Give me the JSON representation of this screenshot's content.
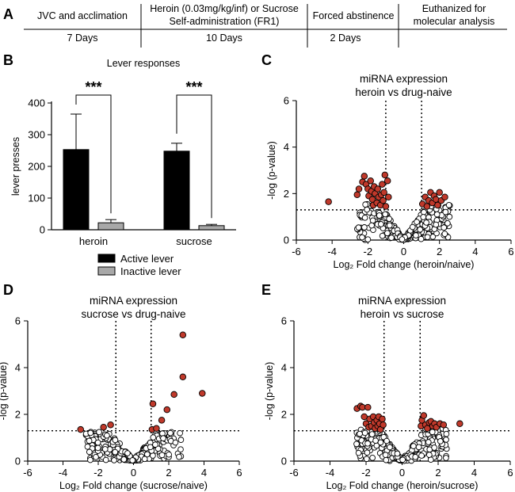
{
  "panel_a": {
    "letter": "A",
    "stages": [
      {
        "top": [
          "JVC and acclimation"
        ],
        "bottom": "7 Days"
      },
      {
        "top": [
          "Heroin (0.03mg/kg/inf) or Sucrose",
          "Self-administration (FR1)"
        ],
        "bottom": "10 Days"
      },
      {
        "top": [
          "Forced abstinence"
        ],
        "bottom": "2 Days"
      },
      {
        "top": [
          "Euthanized for",
          "molecular analysis"
        ],
        "bottom": ""
      }
    ]
  },
  "chart_data": [
    {
      "panel": "B",
      "type": "bar",
      "title": "Lever responses",
      "ylabel": "lever presses",
      "ylim": [
        0,
        400
      ],
      "yticks": [
        0,
        100,
        200,
        300,
        400
      ],
      "categories": [
        "heroin",
        "sucrose"
      ],
      "series": [
        {
          "name": "Active lever",
          "color": "#000000",
          "values": [
            253,
            248
          ],
          "error": [
            112,
            25
          ]
        },
        {
          "name": "Inactive lever",
          "color": "#a8a8a8",
          "values": [
            22,
            13
          ],
          "error": [
            10,
            4
          ]
        }
      ],
      "significance": [
        "***",
        "***"
      ],
      "legend": "bottom"
    },
    {
      "panel": "C",
      "type": "scatter",
      "title": "miRNA expression\nheroin vs drug-naive",
      "xlabel": "Log₂ Fold change (heroin/naive)",
      "ylabel": "-log (p-value)",
      "xlim": [
        -6,
        6
      ],
      "ylim": [
        0,
        6
      ],
      "xticks": [
        -6,
        -4,
        -2,
        0,
        2,
        4,
        6
      ],
      "yticks": [
        0,
        2,
        4,
        6
      ],
      "thresholds": {
        "fold_change": [
          -1,
          1
        ],
        "neg_log_p": 1.3
      },
      "significant_color": "#c0392b",
      "significant_points": [
        [
          -4.2,
          1.65
        ],
        [
          -2.6,
          1.95
        ],
        [
          -2.5,
          2.2
        ],
        [
          -2.3,
          2.5
        ],
        [
          -2.2,
          2.75
        ],
        [
          -2.1,
          2.4
        ],
        [
          -2.0,
          2.2
        ],
        [
          -1.95,
          1.9
        ],
        [
          -1.85,
          2.55
        ],
        [
          -1.8,
          2.1
        ],
        [
          -1.75,
          1.75
        ],
        [
          -1.7,
          1.5
        ],
        [
          -1.65,
          2.3
        ],
        [
          -1.6,
          2.0
        ],
        [
          -1.5,
          1.6
        ],
        [
          -1.45,
          2.2
        ],
        [
          -1.4,
          1.85
        ],
        [
          -1.3,
          1.5
        ],
        [
          -1.25,
          1.95
        ],
        [
          -1.2,
          2.4
        ],
        [
          -1.15,
          1.7
        ],
        [
          -1.1,
          2.05
        ],
        [
          -1.05,
          2.8
        ],
        [
          -1.0,
          1.45
        ],
        [
          -0.9,
          2.55
        ],
        [
          -0.85,
          1.85
        ],
        [
          1.05,
          1.55
        ],
        [
          1.2,
          1.85
        ],
        [
          1.3,
          1.45
        ],
        [
          1.4,
          1.7
        ],
        [
          1.5,
          2.05
        ],
        [
          1.6,
          1.6
        ],
        [
          1.7,
          1.9
        ],
        [
          1.8,
          1.75
        ],
        [
          1.9,
          1.5
        ],
        [
          2.0,
          2.05
        ],
        [
          2.1,
          1.7
        ],
        [
          2.3,
          1.85
        ]
      ]
    },
    {
      "panel": "D",
      "type": "scatter",
      "title": "miRNA expression\nsucrose vs drug-naive",
      "xlabel": "Log₂ Fold change (sucrose/naive)",
      "ylabel": "-log (p-value)",
      "xlim": [
        -6,
        6
      ],
      "ylim": [
        0,
        6
      ],
      "xticks": [
        -6,
        -4,
        -2,
        0,
        2,
        4,
        6
      ],
      "yticks": [
        0,
        2,
        4,
        6
      ],
      "thresholds": {
        "fold_change": [
          -1,
          1
        ],
        "neg_log_p": 1.3
      },
      "significant_color": "#c0392b",
      "significant_points": [
        [
          -3.0,
          1.35
        ],
        [
          -1.7,
          1.45
        ],
        [
          -1.3,
          1.55
        ],
        [
          1.1,
          2.45
        ],
        [
          1.05,
          1.35
        ],
        [
          1.3,
          1.4
        ],
        [
          1.6,
          1.75
        ],
        [
          1.9,
          2.2
        ],
        [
          2.3,
          2.85
        ],
        [
          2.8,
          5.4
        ],
        [
          2.8,
          3.6
        ],
        [
          3.9,
          2.9
        ]
      ]
    },
    {
      "panel": "E",
      "type": "scatter",
      "title": "miRNA expression\nheroin vs sucrose",
      "xlabel": "Log₂ Fold change (heroin/sucrose)",
      "ylabel": "-log (p-value)",
      "xlim": [
        -6,
        6
      ],
      "ylim": [
        0,
        6
      ],
      "xticks": [
        -6,
        -4,
        -2,
        0,
        2,
        4,
        6
      ],
      "yticks": [
        0,
        2,
        4,
        6
      ],
      "thresholds": {
        "fold_change": [
          -1,
          1
        ],
        "neg_log_p": 1.3
      },
      "significant_color": "#c0392b",
      "significant_points": [
        [
          -2.5,
          2.25
        ],
        [
          -2.3,
          2.35
        ],
        [
          -2.2,
          2.3
        ],
        [
          -2.1,
          1.9
        ],
        [
          -2.0,
          1.6
        ],
        [
          -1.9,
          2.3
        ],
        [
          -1.85,
          1.45
        ],
        [
          -1.8,
          1.8
        ],
        [
          -1.7,
          1.5
        ],
        [
          -1.6,
          1.9
        ],
        [
          -1.55,
          1.65
        ],
        [
          -1.5,
          1.4
        ],
        [
          -1.4,
          1.75
        ],
        [
          -1.35,
          1.5
        ],
        [
          -1.3,
          1.9
        ],
        [
          -1.25,
          1.6
        ],
        [
          -1.2,
          1.35
        ],
        [
          -1.1,
          1.8
        ],
        [
          -1.05,
          1.55
        ],
        [
          1.05,
          1.5
        ],
        [
          1.1,
          1.75
        ],
        [
          1.2,
          1.95
        ],
        [
          1.3,
          1.55
        ],
        [
          1.4,
          1.4
        ],
        [
          1.5,
          1.65
        ],
        [
          1.6,
          1.7
        ],
        [
          1.7,
          1.5
        ],
        [
          1.8,
          1.6
        ],
        [
          1.9,
          1.45
        ],
        [
          2.1,
          1.6
        ],
        [
          2.3,
          1.55
        ],
        [
          3.2,
          1.6
        ]
      ]
    }
  ]
}
